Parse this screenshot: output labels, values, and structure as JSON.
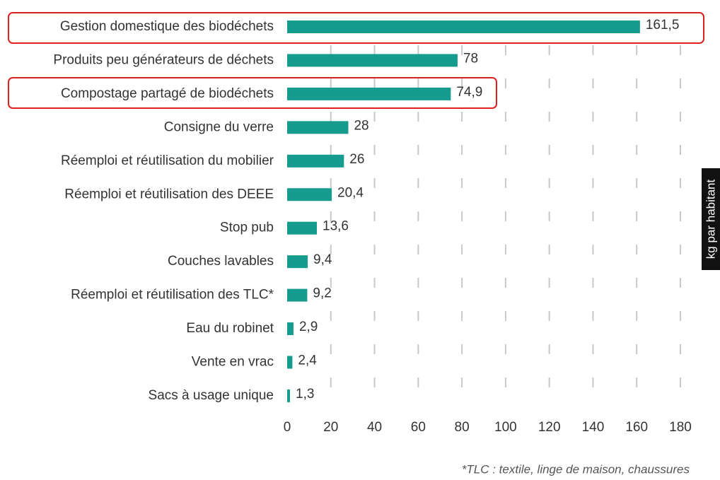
{
  "chart_data": {
    "type": "barh",
    "categories": [
      "Gestion domestique des biodéchets",
      "Produits peu générateurs de déchets",
      "Compostage partagé de biodéchets",
      "Consigne du verre",
      "Réemploi et réutilisation du mobilier",
      "Réemploi et réutilisation des DEEE",
      "Stop pub",
      "Couches lavables",
      "Réemploi et réutilisation des TLC*",
      "Eau du robinet",
      "Vente en vrac",
      "Sacs à usage unique"
    ],
    "values": [
      161.5,
      78,
      74.9,
      28,
      26,
      20.4,
      13.6,
      9.4,
      9.2,
      2.9,
      2.4,
      1.3
    ],
    "value_labels": [
      "161,5",
      "78",
      "74,9",
      "28",
      "26",
      "20,4",
      "13,6",
      "9,4",
      "9,2",
      "2,9",
      "2,4",
      "1,3"
    ],
    "color": "#169b8f",
    "xlim": [
      0,
      180
    ],
    "xticks": [
      0,
      20,
      40,
      60,
      80,
      100,
      120,
      140,
      160,
      180
    ],
    "grid": true,
    "xlabel": "kg par habitant",
    "footnote": "*TLC : textile, linge de maison, chaussures"
  }
}
